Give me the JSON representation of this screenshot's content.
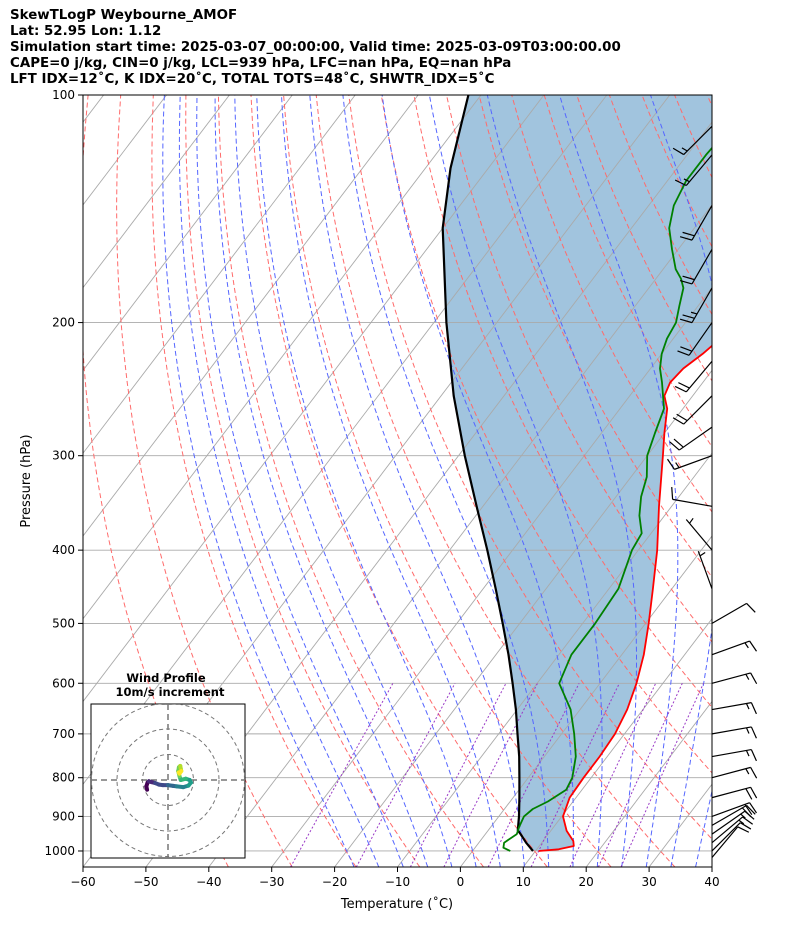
{
  "title": {
    "line1": "SkewTLogP Weybourne_AMOF",
    "line2": "Lat: 52.95   Lon: 1.12",
    "line3": "Simulation start time: 2025-03-07_00:00:00, Valid time: 2025-03-09T03:00:00.00",
    "line4": "CAPE=0 j/kg, CIN=0 j/kg, LCL=939 hPa, LFC=nan hPa, EQ=nan hPa",
    "line5": "LFT IDX=12˚C, K IDX=20˚C, TOTAL TOTS=48˚C, SHWTR_IDX=5˚C"
  },
  "chart_data": {
    "type": "line",
    "xlabel": "Temperature (˚C)",
    "ylabel": "Pressure (hPa)",
    "xlim": [
      -60,
      40
    ],
    "ylim": [
      1050,
      100
    ],
    "yscale": "log",
    "skew": true,
    "x_ticks": [
      -60,
      -50,
      -40,
      -30,
      -20,
      -10,
      0,
      10,
      20,
      30,
      40
    ],
    "y_ticks": [
      1000,
      900,
      800,
      700,
      600,
      500,
      400,
      300,
      200,
      100
    ],
    "grid": true,
    "colors": {
      "temperature": "#ff0000",
      "dewpoint": "#008000",
      "parcel": "#000000",
      "shade": "#a1c4de",
      "dry_adiabat": "#ff6b6b",
      "moist_adiabat": "#5566ff",
      "mixing_ratio": "#9a3bc7",
      "isotherm": "#aaaaaa",
      "wind_barb": "#000000"
    },
    "series": [
      {
        "key": "temperature",
        "points": [
          [
            1000,
            10.5
          ],
          [
            995,
            13.5
          ],
          [
            985,
            15.5
          ],
          [
            970,
            14.8
          ],
          [
            940,
            12.5
          ],
          [
            900,
            10.2
          ],
          [
            850,
            9.0
          ],
          [
            800,
            8.8
          ],
          [
            750,
            8.8
          ],
          [
            700,
            8.5
          ],
          [
            650,
            7.5
          ],
          [
            600,
            5.8
          ],
          [
            550,
            3.5
          ],
          [
            500,
            0.5
          ],
          [
            450,
            -3.0
          ],
          [
            400,
            -7.0
          ],
          [
            350,
            -12.0
          ],
          [
            300,
            -17.5
          ],
          [
            280,
            -20.0
          ],
          [
            260,
            -22.5
          ],
          [
            250,
            -24.5
          ],
          [
            240,
            -25.2
          ],
          [
            230,
            -24.8
          ],
          [
            220,
            -23.5
          ],
          [
            210,
            -22.5
          ],
          [
            200,
            -21.5
          ],
          [
            190,
            -20.5
          ],
          [
            180,
            -19.0
          ],
          [
            170,
            -17.5
          ],
          [
            160,
            -16.0
          ],
          [
            150,
            -15.5
          ],
          [
            140,
            -15.0
          ],
          [
            130,
            -14.5
          ],
          [
            125,
            -14.5
          ],
          [
            120,
            -15.0
          ],
          [
            110,
            -16.0
          ],
          [
            100,
            -16.5
          ]
        ]
      },
      {
        "key": "dewpoint",
        "points": [
          [
            1000,
            6.0
          ],
          [
            990,
            4.5
          ],
          [
            975,
            4.0
          ],
          [
            950,
            5.0
          ],
          [
            930,
            4.5
          ],
          [
            900,
            4.0
          ],
          [
            880,
            4.5
          ],
          [
            860,
            6.0
          ],
          [
            830,
            7.5
          ],
          [
            800,
            7.0
          ],
          [
            750,
            5.0
          ],
          [
            700,
            2.0
          ],
          [
            650,
            -1.5
          ],
          [
            600,
            -6.5
          ],
          [
            550,
            -8.0
          ],
          [
            500,
            -8.0
          ],
          [
            450,
            -8.5
          ],
          [
            400,
            -11.0
          ],
          [
            380,
            -11.5
          ],
          [
            360,
            -14.0
          ],
          [
            340,
            -16.0
          ],
          [
            320,
            -17.5
          ],
          [
            300,
            -20.0
          ],
          [
            280,
            -21.5
          ],
          [
            260,
            -23.0
          ],
          [
            240,
            -26.5
          ],
          [
            230,
            -28.5
          ],
          [
            220,
            -30.0
          ],
          [
            210,
            -31.0
          ],
          [
            200,
            -31.5
          ],
          [
            190,
            -33.0
          ],
          [
            180,
            -34.5
          ],
          [
            175,
            -36.0
          ],
          [
            170,
            -38.0
          ],
          [
            160,
            -41.0
          ],
          [
            150,
            -44.0
          ],
          [
            140,
            -46.0
          ],
          [
            130,
            -47.0
          ],
          [
            120,
            -47.0
          ],
          [
            110,
            -46.5
          ],
          [
            100,
            -45.0
          ]
        ]
      },
      {
        "key": "parcel",
        "points": [
          [
            1000,
            9.6
          ],
          [
            975,
            7.5
          ],
          [
            950,
            5.6
          ],
          [
            939,
            4.7
          ],
          [
            900,
            3.2
          ],
          [
            850,
            1.0
          ],
          [
            800,
            -1.4
          ],
          [
            750,
            -4.0
          ],
          [
            700,
            -7.0
          ],
          [
            650,
            -10.2
          ],
          [
            600,
            -13.9
          ],
          [
            550,
            -18.0
          ],
          [
            500,
            -22.7
          ],
          [
            450,
            -28.0
          ],
          [
            400,
            -34.0
          ],
          [
            350,
            -41.0
          ],
          [
            300,
            -49.0
          ],
          [
            250,
            -58.0
          ],
          [
            200,
            -68.0
          ],
          [
            150,
            -80.0
          ],
          [
            125,
            -86.0
          ],
          [
            100,
            -92.0
          ]
        ]
      }
    ],
    "wind_barbs": [
      {
        "p": 1020,
        "speed_kt": 10,
        "dir": 40
      },
      {
        "p": 1000,
        "speed_kt": 12,
        "dir": 45
      },
      {
        "p": 975,
        "speed_kt": 15,
        "dir": 50
      },
      {
        "p": 950,
        "speed_kt": 18,
        "dir": 55
      },
      {
        "p": 925,
        "speed_kt": 20,
        "dir": 60
      },
      {
        "p": 900,
        "speed_kt": 20,
        "dir": 70
      },
      {
        "p": 850,
        "speed_kt": 22,
        "dir": 75
      },
      {
        "p": 800,
        "speed_kt": 18,
        "dir": 75
      },
      {
        "p": 750,
        "speed_kt": 15,
        "dir": 80
      },
      {
        "p": 700,
        "speed_kt": 15,
        "dir": 80
      },
      {
        "p": 650,
        "speed_kt": 15,
        "dir": 80
      },
      {
        "p": 600,
        "speed_kt": 15,
        "dir": 75
      },
      {
        "p": 550,
        "speed_kt": 15,
        "dir": 70
      },
      {
        "p": 500,
        "speed_kt": 10,
        "dir": 60
      },
      {
        "p": 450,
        "speed_kt": 5,
        "dir": 340
      },
      {
        "p": 400,
        "speed_kt": 5,
        "dir": 320
      },
      {
        "p": 350,
        "speed_kt": 10,
        "dir": 280
      },
      {
        "p": 300,
        "speed_kt": 15,
        "dir": 250
      },
      {
        "p": 275,
        "speed_kt": 20,
        "dir": 235
      },
      {
        "p": 250,
        "speed_kt": 20,
        "dir": 225
      },
      {
        "p": 225,
        "speed_kt": 20,
        "dir": 220
      },
      {
        "p": 200,
        "speed_kt": 20,
        "dir": 215
      },
      {
        "p": 180,
        "speed_kt": 25,
        "dir": 210
      },
      {
        "p": 160,
        "speed_kt": 20,
        "dir": 210
      },
      {
        "p": 140,
        "speed_kt": 20,
        "dir": 210
      },
      {
        "p": 120,
        "speed_kt": 15,
        "dir": 220
      },
      {
        "p": 110,
        "speed_kt": 15,
        "dir": 225
      }
    ],
    "hodograph": {
      "title_line1": "Wind Profile",
      "title_line2": "10m/s increment",
      "rings_ms": [
        10,
        20,
        30
      ],
      "colormap": "viridis",
      "points": [
        [
          -8.2,
          -3.8
        ],
        [
          -8.5,
          -2.5
        ],
        [
          -8.0,
          -1.0
        ],
        [
          -7.5,
          -0.5
        ],
        [
          -6.5,
          -0.8
        ],
        [
          -5.0,
          -1.2
        ],
        [
          -3.5,
          -1.8
        ],
        [
          -2.0,
          -2.0
        ],
        [
          0.0,
          -2.0
        ],
        [
          2.0,
          -2.3
        ],
        [
          3.5,
          -2.5
        ],
        [
          6.0,
          -2.8
        ],
        [
          8.0,
          -2.2
        ],
        [
          9.0,
          -1.0
        ],
        [
          8.5,
          0.0
        ],
        [
          7.0,
          0.5
        ],
        [
          5.0,
          0.0
        ],
        [
          4.5,
          1.5
        ],
        [
          4.0,
          3.5
        ],
        [
          4.3,
          5.0
        ],
        [
          4.8,
          5.5
        ],
        [
          5.0,
          4.5
        ],
        [
          5.2,
          3.5
        ],
        [
          4.5,
          2.5
        ],
        [
          4.2,
          3.0
        ]
      ]
    }
  }
}
